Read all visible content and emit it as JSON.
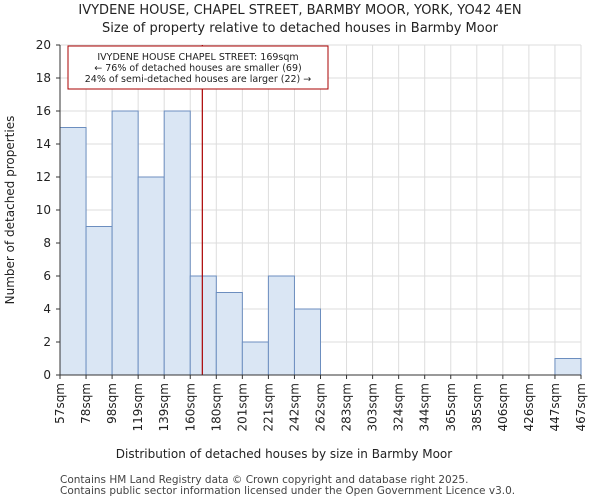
{
  "chart_data": {
    "type": "bar",
    "title": "IVYDENE HOUSE, CHAPEL STREET, BARMBY MOOR, YORK, YO42 4EN",
    "subtitle": "Size of property relative to detached houses in Barmby Moor",
    "xlabel": "Distribution of detached houses by size in Barmby Moor",
    "ylabel": "Number of detached properties",
    "x_tick_labels": [
      "57sqm",
      "78sqm",
      "98sqm",
      "119sqm",
      "139sqm",
      "160sqm",
      "180sqm",
      "201sqm",
      "221sqm",
      "242sqm",
      "262sqm",
      "283sqm",
      "303sqm",
      "324sqm",
      "344sqm",
      "365sqm",
      "385sqm",
      "406sqm",
      "426sqm",
      "447sqm",
      "467sqm"
    ],
    "values": [
      15,
      9,
      16,
      12,
      16,
      6,
      5,
      2,
      6,
      4,
      0,
      0,
      0,
      0,
      0,
      0,
      0,
      0,
      0,
      1
    ],
    "ylim": [
      0,
      20
    ],
    "yticks": [
      0,
      2,
      4,
      6,
      8,
      10,
      12,
      14,
      16,
      18,
      20
    ],
    "grid": true,
    "marker": {
      "value_sqm": 169,
      "color": "#aa0000"
    },
    "annotation": {
      "lines": [
        "IVYDENE HOUSE CHAPEL STREET: 169sqm",
        "← 76% of detached houses are smaller (69)",
        "24% of semi-detached houses are larger (22) →"
      ]
    },
    "colors": {
      "bar_fill": "#dae6f4",
      "bar_stroke": "#6c8ebf",
      "grid": "#dddddd"
    }
  },
  "footer": {
    "line1": "Contains HM Land Registry data © Crown copyright and database right 2025.",
    "line2": "Contains public sector information licensed under the Open Government Licence v3.0."
  }
}
